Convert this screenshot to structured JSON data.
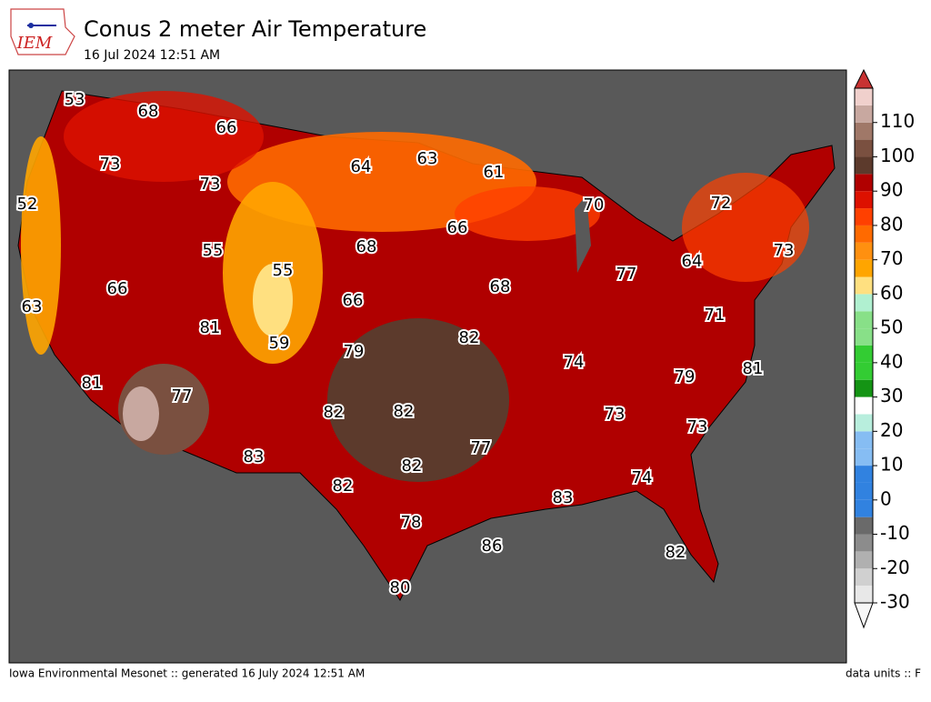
{
  "header": {
    "logo": "IEM",
    "title": "Conus 2 meter Air Temperature",
    "subtitle": "16 Jul 2024 12:51 AM"
  },
  "stations": [
    53,
    68,
    66,
    73,
    73,
    52,
    55,
    55,
    66,
    63,
    81,
    59,
    68,
    66,
    64,
    63,
    61,
    70,
    72,
    73,
    64,
    77,
    68,
    66,
    79,
    82,
    74,
    71,
    79,
    81,
    81,
    77,
    82,
    82,
    73,
    73,
    83,
    82,
    77,
    74,
    82,
    83,
    78,
    86,
    82,
    80
  ],
  "colorbar": {
    "lim": [
      -30,
      120
    ],
    "ticks": [
      -30,
      -20,
      -10,
      0,
      10,
      20,
      30,
      40,
      50,
      60,
      70,
      80,
      90,
      100,
      110
    ],
    "colors": [
      "#e8e8e8",
      "#d0d0d0",
      "#b0b0b0",
      "#8c8c8c",
      "#6a6a6a",
      "#3182e0",
      "#3182e0",
      "#3182e0",
      "#86bdf3",
      "#86bdf3",
      "#b8eedd",
      "#ffffff",
      "#149414",
      "#33cc33",
      "#33cc33",
      "#88e088",
      "#88e088",
      "#b0f0d0",
      "#ffe080",
      "#ffa500",
      "#ff9010",
      "#ff6a00",
      "#ff4000",
      "#dd1100",
      "#b00000",
      "#5c3a2c",
      "#7a5040",
      "#a07868",
      "#c8a8a0",
      "#f0d0cc"
    ]
  },
  "footer": {
    "left": "Iowa Environmental Mesonet :: generated 16 July 2024 12:51 AM",
    "right": "data units :: F"
  }
}
